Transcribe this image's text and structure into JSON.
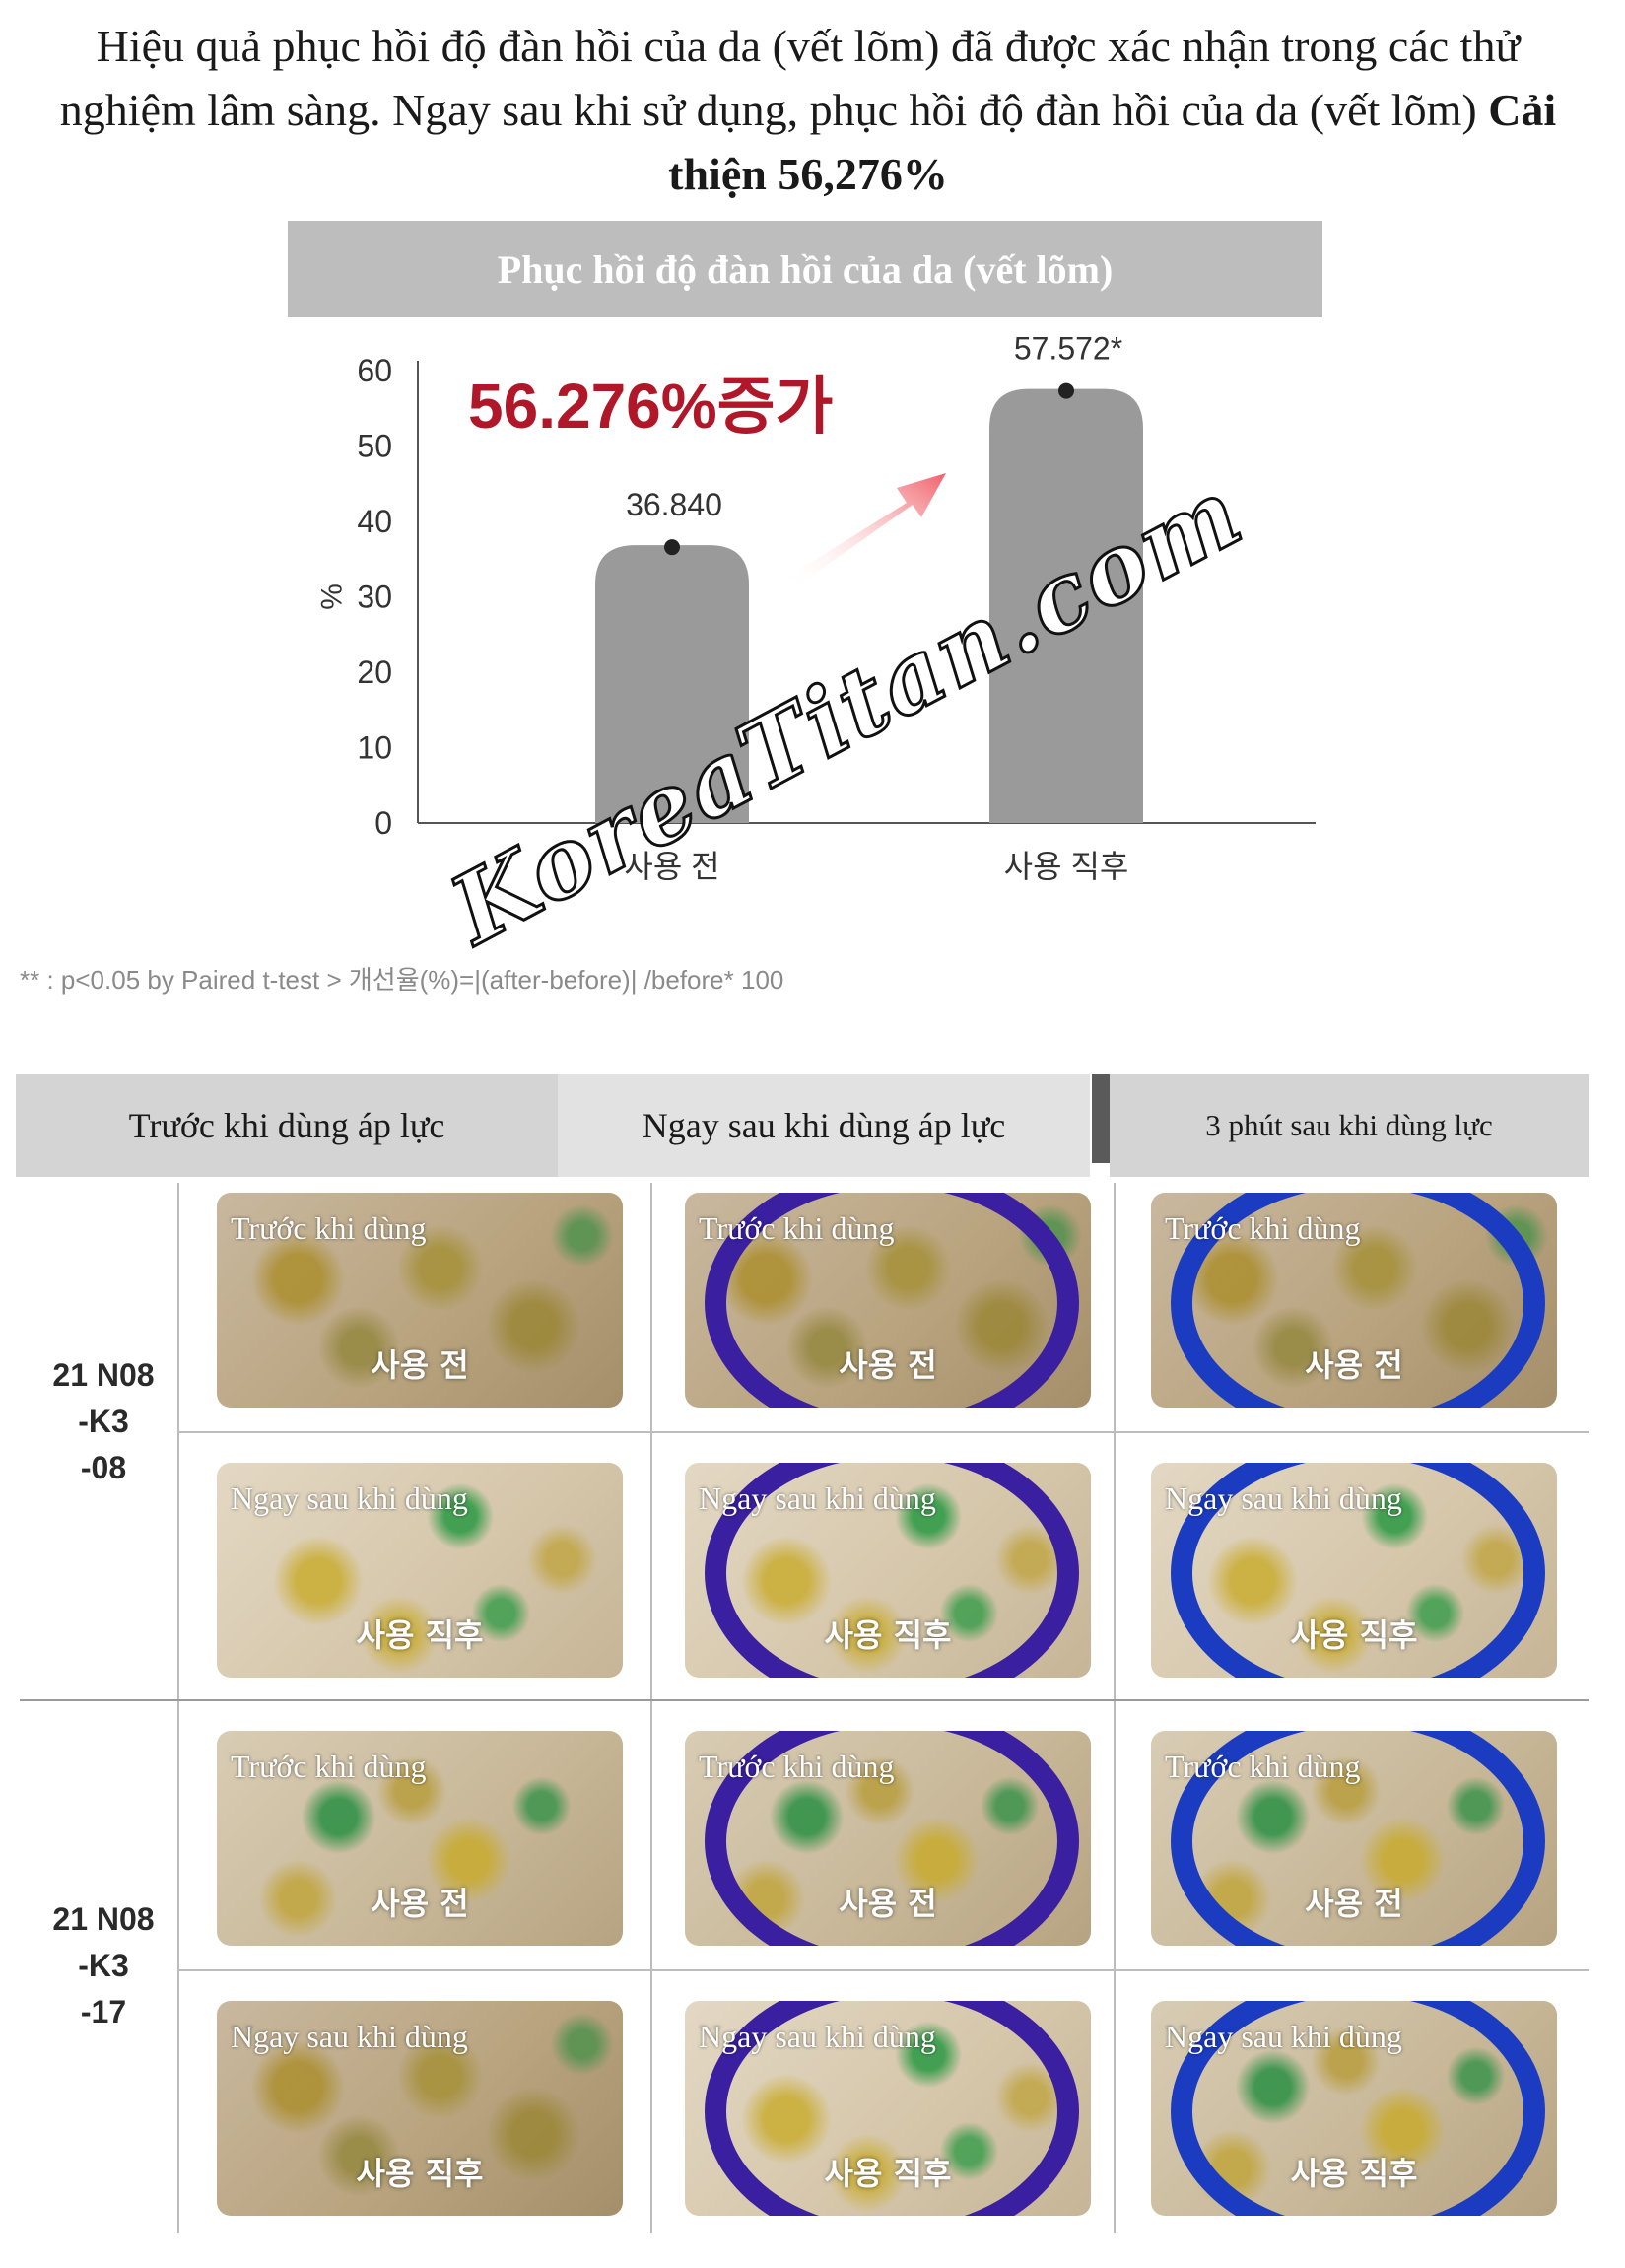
{
  "intro": {
    "text": "Hiệu quả phục hồi độ đàn hồi của da (vết lõm) đã được xác nhận trong các thử nghiệm lâm sàng. Ngay sau khi sử dụng, phục hồi độ đàn hồi của da (vết lõm) ",
    "highlight": "Cải thiện 56,276%"
  },
  "chart_header": "Phục hồi độ đàn hồi của da (vết lõm)",
  "chart_data": {
    "type": "bar",
    "categories": [
      "사용 전",
      "사용 직후"
    ],
    "values": [
      36.84,
      57.572
    ],
    "value_labels": [
      "36.840",
      "57.572*"
    ],
    "ylabel": "%",
    "ylim": [
      0,
      60
    ],
    "yticks": [
      "0",
      "10",
      "20",
      "30",
      "40",
      "50",
      "60"
    ],
    "annotation": "56.276%증가",
    "annotation_color": "#b0182a",
    "bar_color": "#9a9a9a",
    "grid": false
  },
  "footnote": "** : p<0.05 by Paired t-test > 개선율(%)=|(after-before)| /before* 100",
  "watermark": "KoreaTitan.com",
  "columns": [
    "Trước khi dùng áp lực",
    "Ngay sau khi dùng áp lực",
    "3 phút sau khi dùng lực"
  ],
  "groups": [
    {
      "label": "21 N08\n-K3\n-08",
      "rows": [
        {
          "vi": "Trước khi dùng",
          "ko": "사용 전"
        },
        {
          "vi": "Ngay sau khi dùng",
          "ko": "사용 직후"
        }
      ]
    },
    {
      "label": "21 N08\n-K3\n-17",
      "rows": [
        {
          "vi": "Trước khi dùng",
          "ko": "사용 전"
        },
        {
          "vi": "Ngay sau khi dùng",
          "ko": "사용 직후"
        }
      ]
    }
  ]
}
